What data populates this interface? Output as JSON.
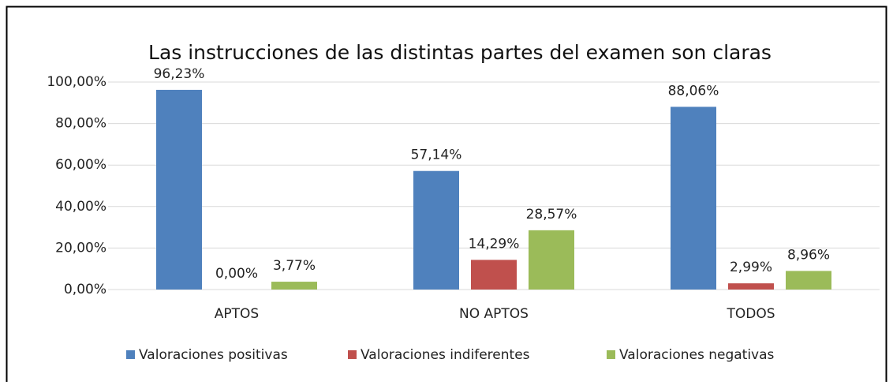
{
  "chart_data": {
    "type": "bar",
    "title": "Las instrucciones de las distintas partes del examen son claras",
    "categories": [
      "APTOS",
      "NO APTOS",
      "TODOS"
    ],
    "series": [
      {
        "name": "Valoraciones positivas",
        "color": "#4f81bd",
        "values": [
          96.23,
          57.14,
          88.06
        ],
        "value_labels": [
          "96,23%",
          "57,14%",
          "88,06%"
        ]
      },
      {
        "name": "Valoraciones indiferentes",
        "color": "#c0504d",
        "values": [
          0,
          14.29,
          2.99
        ],
        "value_labels": [
          "0,00%",
          "14,29%",
          "2,99%"
        ]
      },
      {
        "name": "Valoraciones negativas",
        "color": "#9bbb59",
        "values": [
          3.77,
          28.57,
          8.96
        ],
        "value_labels": [
          "3,77%",
          "28,57%",
          "8,96%"
        ]
      }
    ],
    "ylim": [
      0,
      100
    ],
    "yticks": [
      {
        "value": 0,
        "label": "0,00%"
      },
      {
        "value": 20,
        "label": "20,00%"
      },
      {
        "value": 40,
        "label": "40,00%"
      },
      {
        "value": 60,
        "label": "60,00%"
      },
      {
        "value": 80,
        "label": "80,00%"
      },
      {
        "value": 100,
        "label": "100,00%"
      }
    ],
    "grid": true,
    "legend": "bottom"
  }
}
